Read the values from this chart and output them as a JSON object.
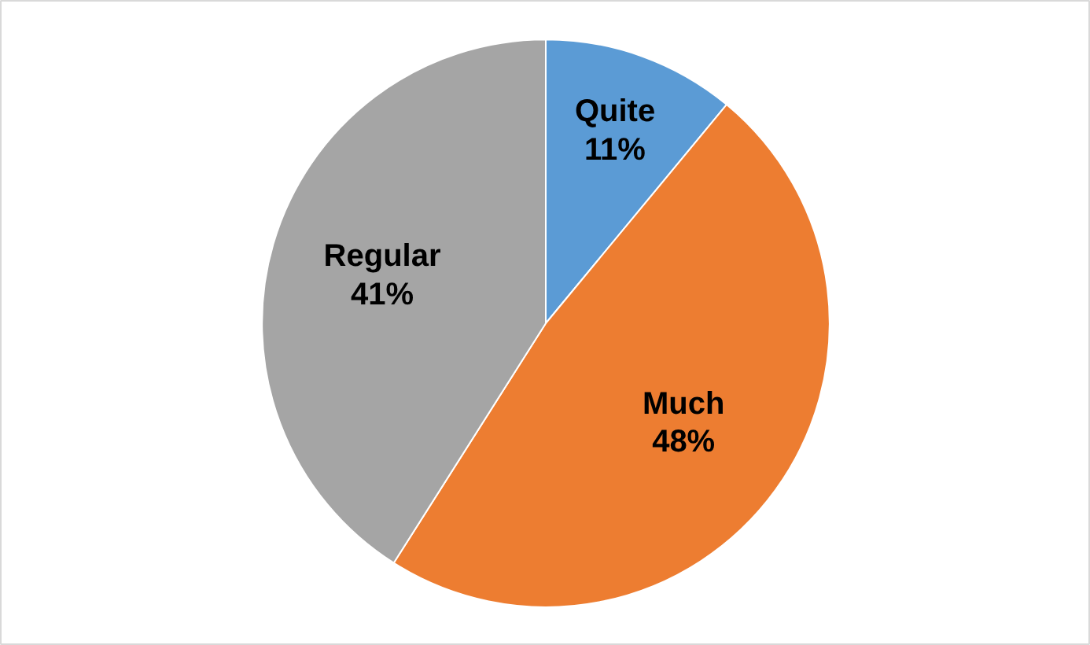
{
  "chart_data": {
    "type": "pie",
    "categories": [
      "Quite",
      "Much",
      "Regular"
    ],
    "values": [
      11,
      48,
      41
    ],
    "colors": [
      "#5b9bd5",
      "#ed7d31",
      "#a5a5a5"
    ],
    "value_labels": [
      "11%",
      "48%",
      "41%"
    ]
  }
}
